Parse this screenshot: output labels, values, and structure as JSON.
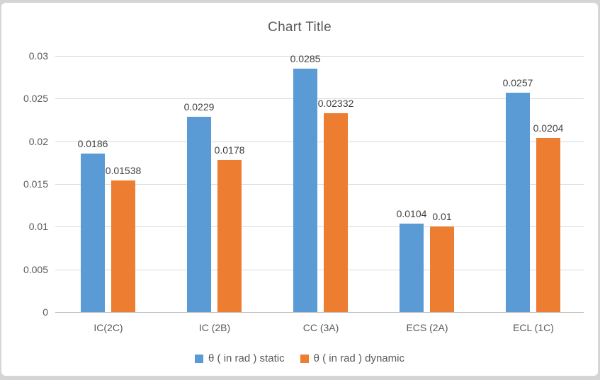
{
  "chart_data": {
    "type": "bar",
    "title": "Chart Title",
    "categories": [
      "IC(2C)",
      "IC (2B)",
      "CC (3A)",
      "ECS (2A)",
      "ECL (1C)"
    ],
    "series": [
      {
        "name": "θ ( in rad ) static",
        "color": "#5B9BD5",
        "values": [
          0.0186,
          0.0229,
          0.0285,
          0.0104,
          0.0257
        ],
        "labels": [
          "0.0186",
          "0.0229",
          "0.0285",
          "0.0104",
          "0.0257"
        ]
      },
      {
        "name": "θ ( in rad ) dynamic",
        "color": "#ED7D31",
        "values": [
          0.01538,
          0.0178,
          0.02332,
          0.01,
          0.0204
        ],
        "labels": [
          "0.01538",
          "0.0178",
          "0.02332",
          "0.01",
          "0.0204"
        ]
      }
    ],
    "ylim": [
      0,
      0.03
    ],
    "ytick_step": 0.005,
    "ytick_labels": [
      "0",
      "0.005",
      "0.01",
      "0.015",
      "0.02",
      "0.025",
      "0.03"
    ],
    "grid": true,
    "data_labels": true,
    "legend_position": "bottom",
    "xlabel": "",
    "ylabel": ""
  },
  "theme": {
    "title_color": "#595959",
    "axis_text_color": "#595959",
    "data_label_color": "#404040",
    "gridline_color": "#D9D9D9",
    "axis_line_color": "#BFBFBF",
    "chart_background": "#FFFFFF",
    "frame_border": "#D9D9D9",
    "page_background": "#D4D4D4"
  }
}
